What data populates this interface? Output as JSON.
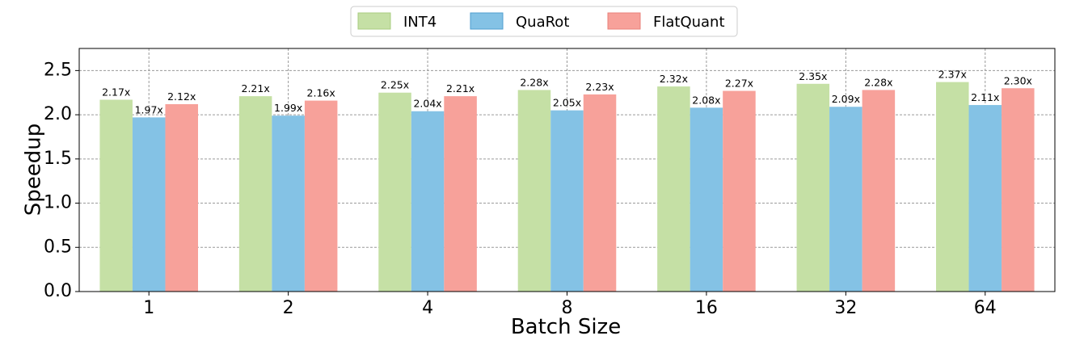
{
  "chart_data": {
    "type": "bar",
    "xlabel": "Batch Size",
    "ylabel": "Speedup",
    "categories": [
      "1",
      "2",
      "4",
      "8",
      "16",
      "32",
      "64"
    ],
    "series": [
      {
        "name": "INT4",
        "color": "#c5e0a5",
        "edge": "#a9cc80",
        "values": [
          2.17,
          2.21,
          2.25,
          2.28,
          2.32,
          2.35,
          2.37
        ],
        "labels": [
          "2.17x",
          "2.21x",
          "2.25x",
          "2.28x",
          "2.32x",
          "2.35x",
          "2.37x"
        ]
      },
      {
        "name": "QuaRot",
        "color": "#84c2e5",
        "edge": "#4f9fd0",
        "values": [
          1.97,
          1.99,
          2.04,
          2.05,
          2.08,
          2.09,
          2.11
        ],
        "labels": [
          "1.97x",
          "1.99x",
          "2.04x",
          "2.05x",
          "2.08x",
          "2.09x",
          "2.11x"
        ]
      },
      {
        "name": "FlatQuant",
        "color": "#f7a19a",
        "edge": "#e8817a",
        "values": [
          2.12,
          2.16,
          2.21,
          2.23,
          2.27,
          2.28,
          2.3
        ],
        "labels": [
          "2.12x",
          "2.16x",
          "2.21x",
          "2.23x",
          "2.27x",
          "2.28x",
          "2.30x"
        ]
      }
    ],
    "yticks": [
      0.0,
      0.5,
      1.0,
      1.5,
      2.0,
      2.5
    ],
    "ytick_labels": [
      "0.0",
      "0.5",
      "1.0",
      "1.5",
      "2.0",
      "2.5"
    ],
    "ylim": [
      0,
      2.75
    ],
    "grid": true,
    "legend_position": "top-center"
  }
}
